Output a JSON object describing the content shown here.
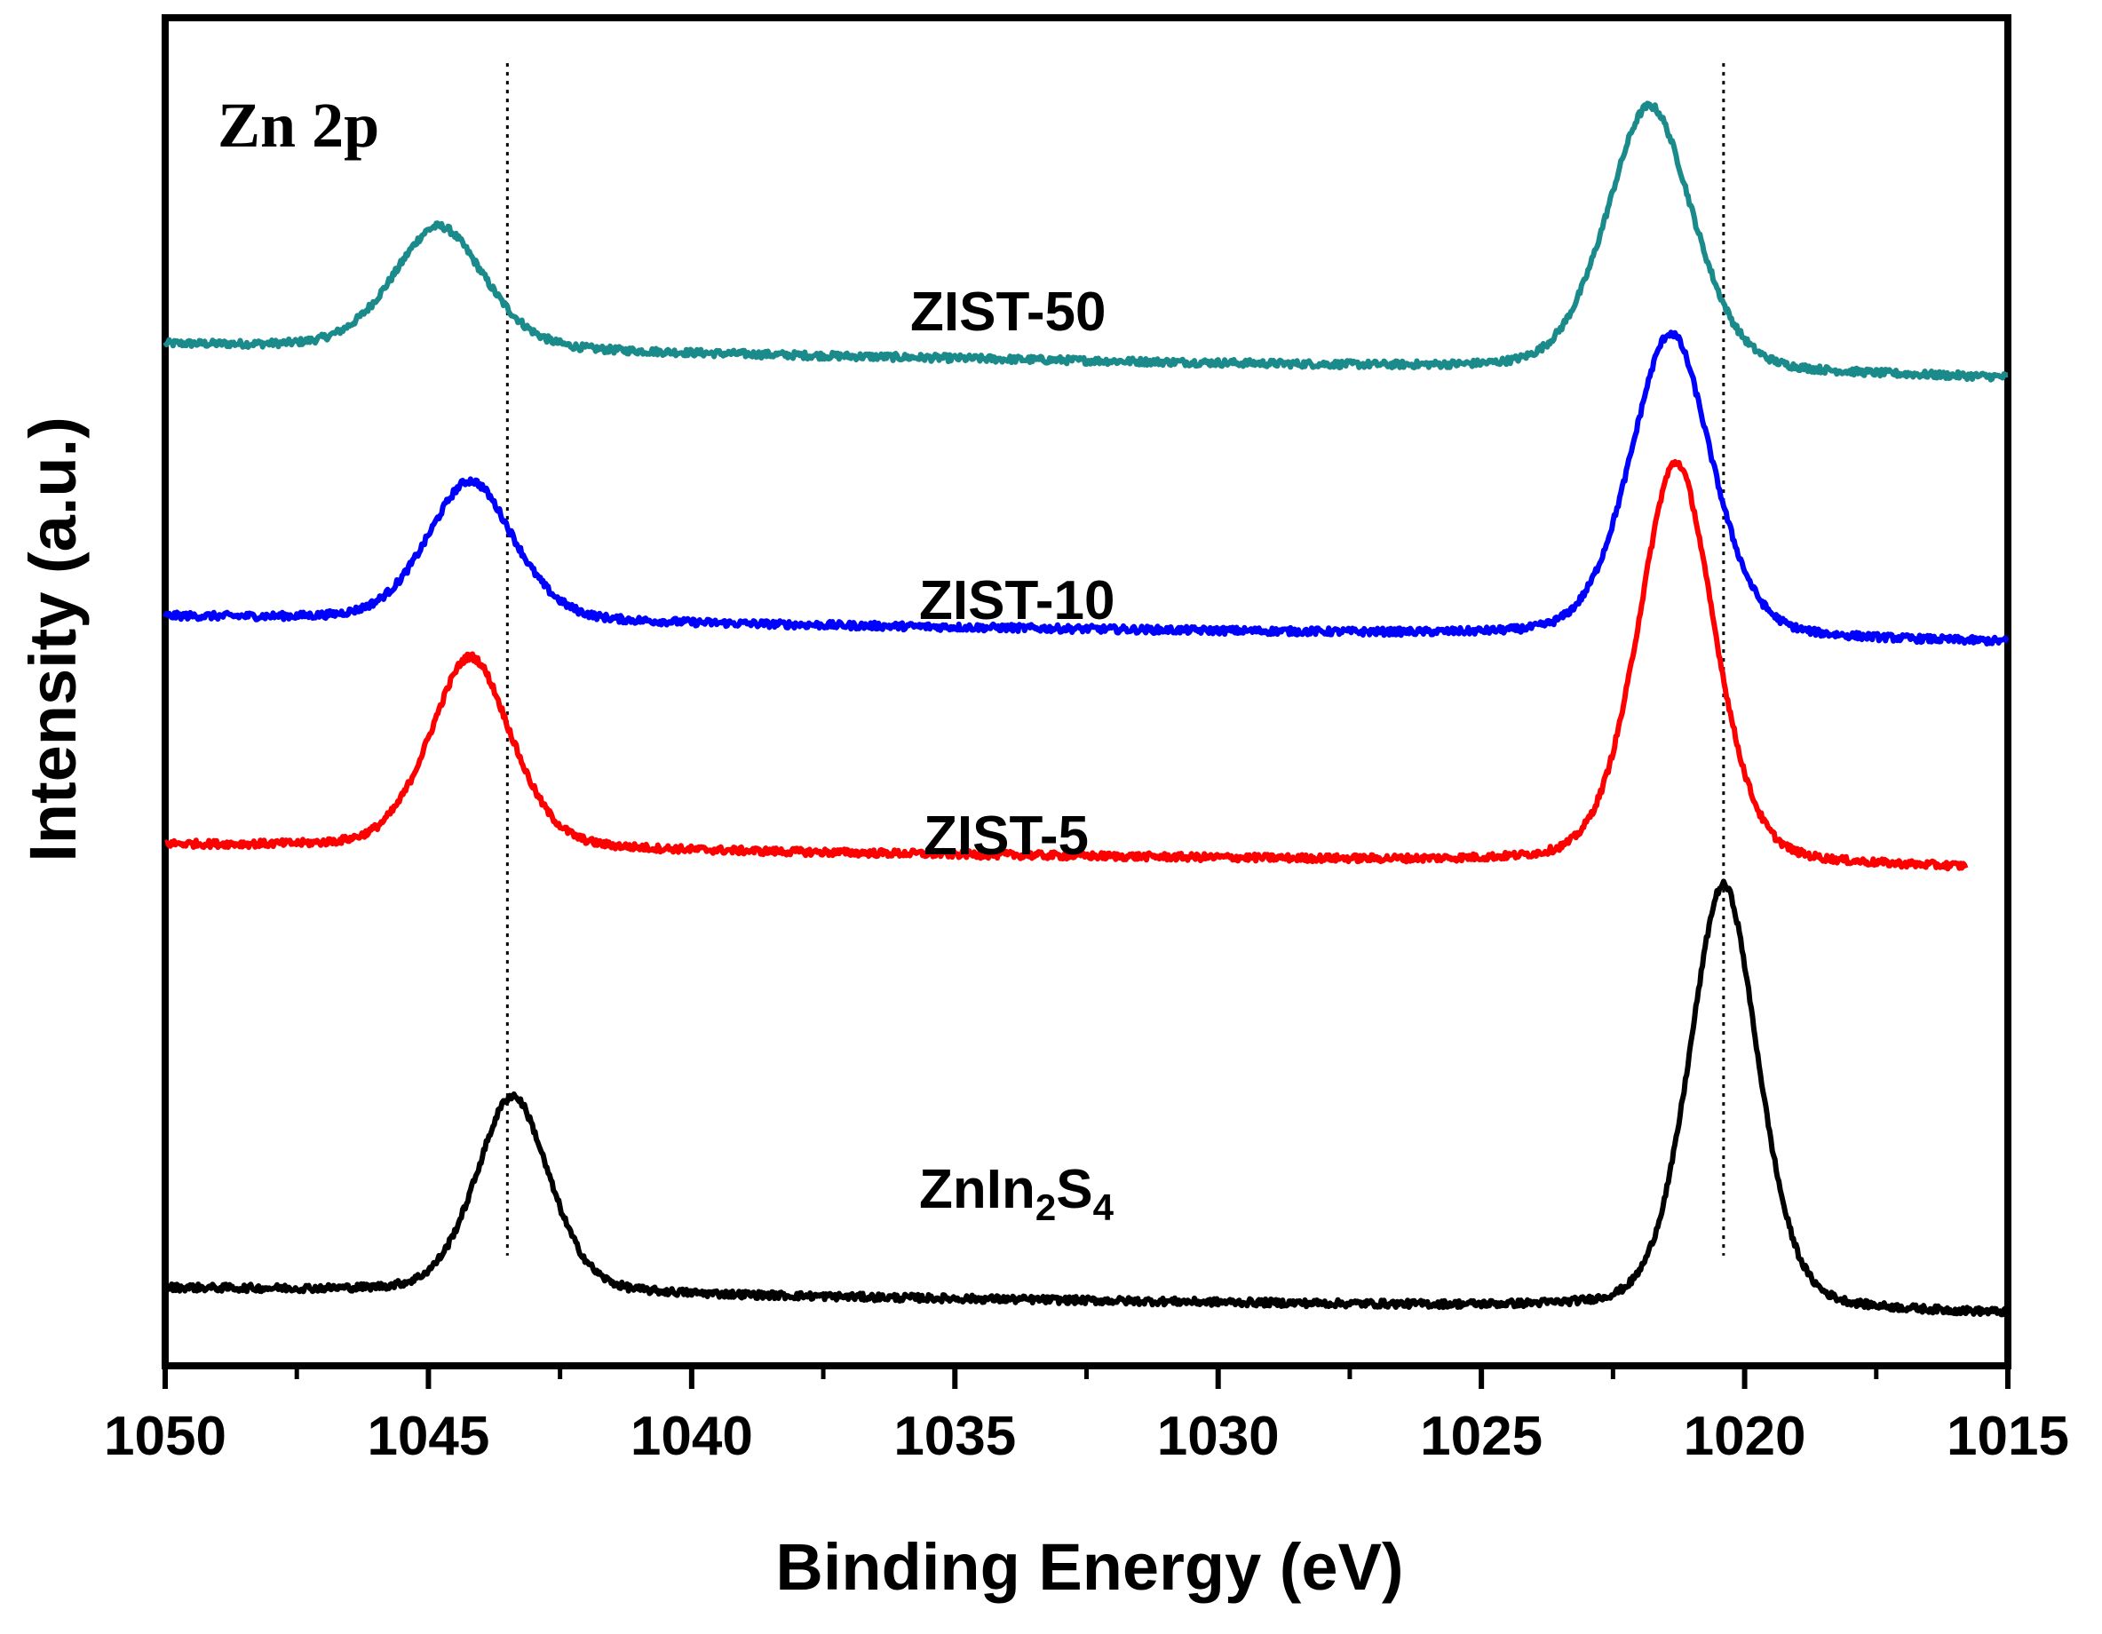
{
  "chart_data": {
    "type": "line",
    "title": "",
    "panel_label": "Zn 2p",
    "xlabel": "Binding Energy (eV)",
    "ylabel": "Intensity (a.u.)",
    "xlim": [
      1050,
      1015
    ],
    "x_reversed": true,
    "x_ticks": [
      1050,
      1045,
      1040,
      1035,
      1030,
      1025,
      1020,
      1015
    ],
    "y_ticks_visible": false,
    "reference_lines": [
      1043.5,
      1020.4
    ],
    "series": [
      {
        "name": "ZIST-50",
        "label": "ZIST-50",
        "color": "#1a8a8a",
        "x_end": 1015,
        "peaks": [
          {
            "center": 1044.8,
            "height": 0.95,
            "width": 0.9
          },
          {
            "center": 1021.8,
            "height": 2.05,
            "width": 0.85
          }
        ],
        "baseline_start": 5.28,
        "baseline_end": 5.02
      },
      {
        "name": "ZIST-10",
        "label": "ZIST-10",
        "color": "#0000ff",
        "x_end": 1015,
        "peaks": [
          {
            "center": 1044.2,
            "height": 1.08,
            "width": 0.85
          },
          {
            "center": 1021.4,
            "height": 2.35,
            "width": 0.8
          }
        ],
        "baseline_start": 3.18,
        "baseline_end": 2.98
      },
      {
        "name": "ZIST-5",
        "label": "ZIST-5",
        "color": "#ff0000",
        "x_end": 1015.8,
        "peaks": [
          {
            "center": 1044.2,
            "height": 1.48,
            "width": 0.8
          },
          {
            "center": 1021.3,
            "height": 3.1,
            "width": 0.75
          }
        ],
        "baseline_start": 1.42,
        "baseline_end": 1.24
      },
      {
        "name": "ZnIn2S4",
        "label": "ZnIn",
        "label_sub1": "2",
        "label_mid": "S",
        "label_sub2": "4",
        "color": "#000000",
        "x_end": 1015,
        "peaks": [
          {
            "center": 1043.4,
            "height": 1.52,
            "width": 0.72
          },
          {
            "center": 1020.4,
            "height": 3.28,
            "width": 0.68
          }
        ],
        "baseline_start": -2.0,
        "baseline_end": -2.2
      }
    ],
    "ylim": [
      -2.6,
      7.8
    ]
  }
}
